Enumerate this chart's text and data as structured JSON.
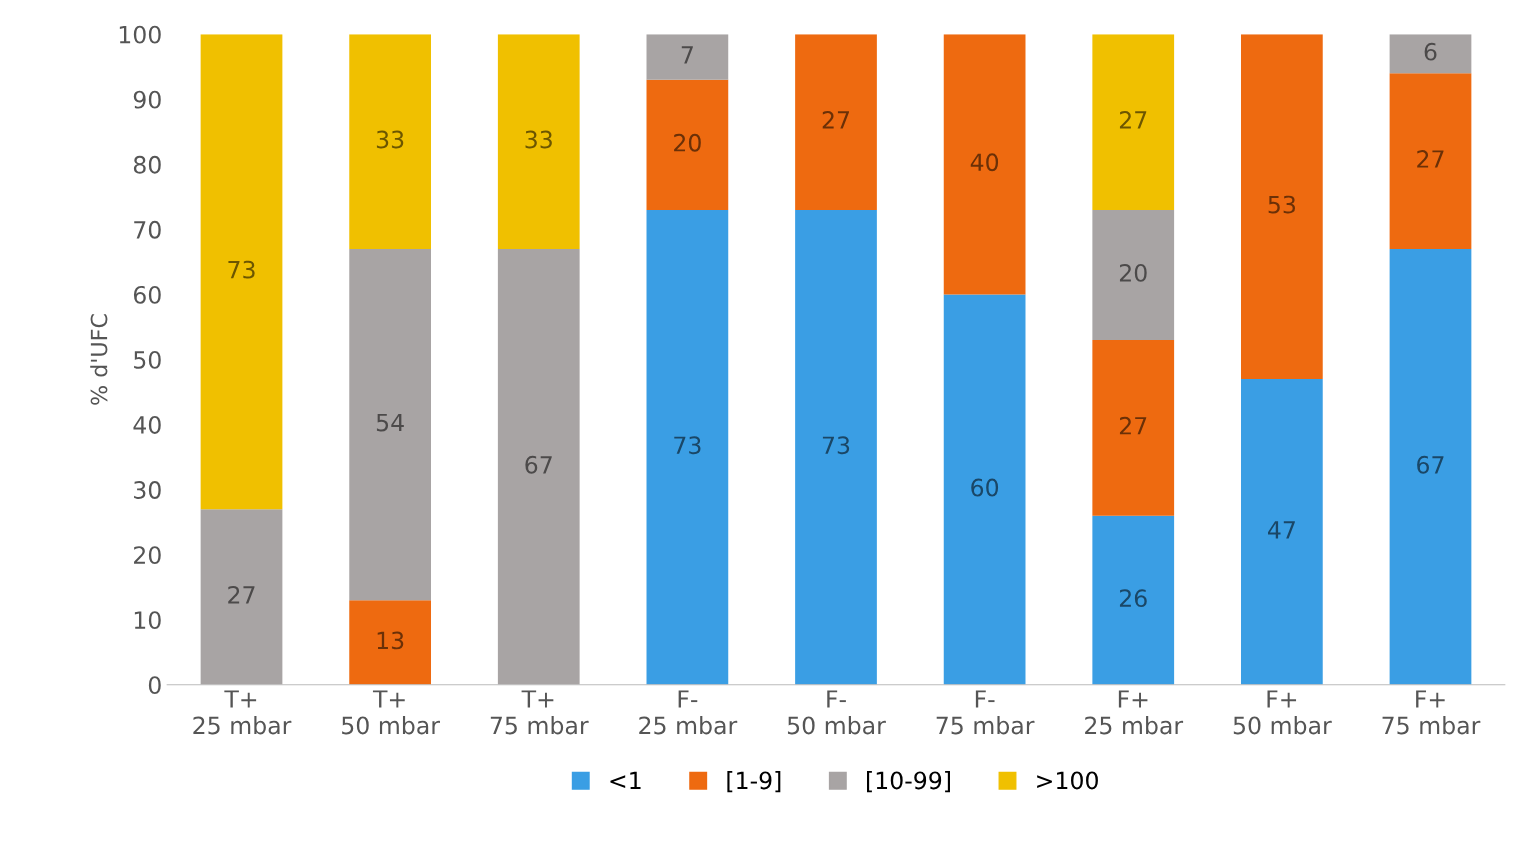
{
  "chart_data": {
    "type": "bar",
    "stacked": true,
    "ylabel": "% d'UFC",
    "categories": [
      "T+\n25 mbar",
      "T+\n50 mbar",
      "T+\n75 mbar",
      "F-\n25 mbar",
      "F-\n50 mbar",
      "F-\n75 mbar",
      "F+\n25 mbar",
      "F+\n50 mbar",
      "F+\n75 mbar"
    ],
    "series": [
      {
        "name": "<1",
        "color": "#3a9ee4",
        "values": [
          null,
          null,
          null,
          73,
          73,
          60,
          26,
          47,
          67
        ]
      },
      {
        "name": "[1-9]",
        "color": "#ee6a10",
        "values": [
          null,
          13,
          null,
          20,
          27,
          40,
          27,
          53,
          27
        ]
      },
      {
        "name": "[10-99]",
        "color": "#a8a4a4",
        "values": [
          27,
          54,
          67,
          7,
          null,
          null,
          20,
          null,
          6
        ]
      },
      {
        "name": ">100",
        "color": "#f0c000",
        "values": [
          73,
          33,
          33,
          null,
          null,
          null,
          27,
          null,
          null
        ]
      }
    ],
    "ylim": [
      0,
      100
    ],
    "yticks": [
      0,
      10,
      20,
      30,
      40,
      50,
      60,
      70,
      80,
      90,
      100
    ],
    "data_labels": true,
    "grid": false,
    "legend": "bottom"
  }
}
